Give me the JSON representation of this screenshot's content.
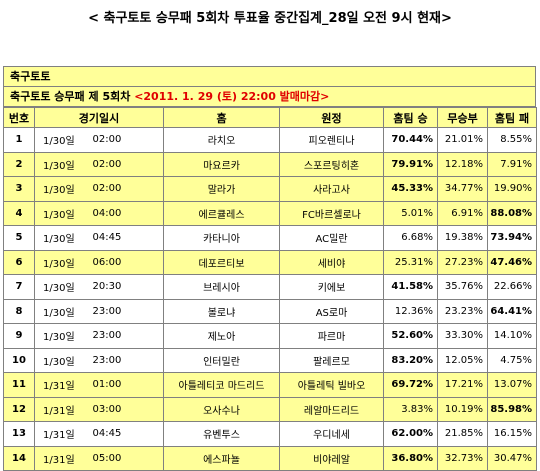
{
  "title": "< 축구토토 승무패 5회차 투표율 중간집계_28일 오전 9시 현재>",
  "section_label": "축구토토",
  "round_label": "축구토토 승무패 제 5회차",
  "deadline_notice": "<2011. 1. 29 (토) 22:00 발매마감>",
  "columns": [
    "번호",
    "경기일시",
    "홈",
    "원정",
    "홈팀 승",
    "무승부",
    "홈팀 패"
  ],
  "rows": [
    {
      "no": "1",
      "date": "1/30일",
      "time": "02:00",
      "home": "라치오",
      "away": "피오렌티나",
      "win": "70.44%",
      "draw": "21.01%",
      "lose": "8.55%",
      "highlight": false,
      "bold": "win"
    },
    {
      "no": "2",
      "date": "1/30일",
      "time": "02:00",
      "home": "마요르카",
      "away": "스포르팅히혼",
      "win": "79.91%",
      "draw": "12.18%",
      "lose": "7.91%",
      "highlight": true,
      "bold": "win"
    },
    {
      "no": "3",
      "date": "1/30일",
      "time": "02:00",
      "home": "말라가",
      "away": "사라고사",
      "win": "45.33%",
      "draw": "34.77%",
      "lose": "19.90%",
      "highlight": true,
      "bold": "win"
    },
    {
      "no": "4",
      "date": "1/30일",
      "time": "04:00",
      "home": "에르큘레스",
      "away": "FC바르셀로나",
      "win": "5.01%",
      "draw": "6.91%",
      "lose": "88.08%",
      "highlight": true,
      "bold": "lose"
    },
    {
      "no": "5",
      "date": "1/30일",
      "time": "04:45",
      "home": "카타니아",
      "away": "AC밀란",
      "win": "6.68%",
      "draw": "19.38%",
      "lose": "73.94%",
      "highlight": false,
      "bold": "lose"
    },
    {
      "no": "6",
      "date": "1/30일",
      "time": "06:00",
      "home": "데포르티보",
      "away": "세비야",
      "win": "25.31%",
      "draw": "27.23%",
      "lose": "47.46%",
      "highlight": true,
      "bold": "lose"
    },
    {
      "no": "7",
      "date": "1/30일",
      "time": "20:30",
      "home": "브레시아",
      "away": "키에보",
      "win": "41.58%",
      "draw": "35.76%",
      "lose": "22.66%",
      "highlight": false,
      "bold": "win"
    },
    {
      "no": "8",
      "date": "1/30일",
      "time": "23:00",
      "home": "볼로냐",
      "away": "AS로마",
      "win": "12.36%",
      "draw": "23.23%",
      "lose": "64.41%",
      "highlight": false,
      "bold": "lose"
    },
    {
      "no": "9",
      "date": "1/30일",
      "time": "23:00",
      "home": "제노아",
      "away": "파르마",
      "win": "52.60%",
      "draw": "33.30%",
      "lose": "14.10%",
      "highlight": false,
      "bold": "win"
    },
    {
      "no": "10",
      "date": "1/30일",
      "time": "23:00",
      "home": "인터밀란",
      "away": "팔레르모",
      "win": "83.20%",
      "draw": "12.05%",
      "lose": "4.75%",
      "highlight": false,
      "bold": "win"
    },
    {
      "no": "11",
      "date": "1/31일",
      "time": "01:00",
      "home": "아틀레티코 마드리드",
      "away": "아틀레틱 빌바오",
      "win": "69.72%",
      "draw": "17.21%",
      "lose": "13.07%",
      "highlight": true,
      "bold": "win"
    },
    {
      "no": "12",
      "date": "1/31일",
      "time": "03:00",
      "home": "오사수나",
      "away": "레알마드리드",
      "win": "3.83%",
      "draw": "10.19%",
      "lose": "85.98%",
      "highlight": true,
      "bold": "lose"
    },
    {
      "no": "13",
      "date": "1/31일",
      "time": "04:45",
      "home": "유벤투스",
      "away": "우디네세",
      "win": "62.00%",
      "draw": "21.85%",
      "lose": "16.15%",
      "highlight": false,
      "bold": "win"
    },
    {
      "no": "14",
      "date": "1/31일",
      "time": "05:00",
      "home": "에스파뇰",
      "away": "비야레알",
      "win": "36.80%",
      "draw": "32.73%",
      "lose": "30.47%",
      "highlight": true,
      "bold": "win"
    }
  ]
}
